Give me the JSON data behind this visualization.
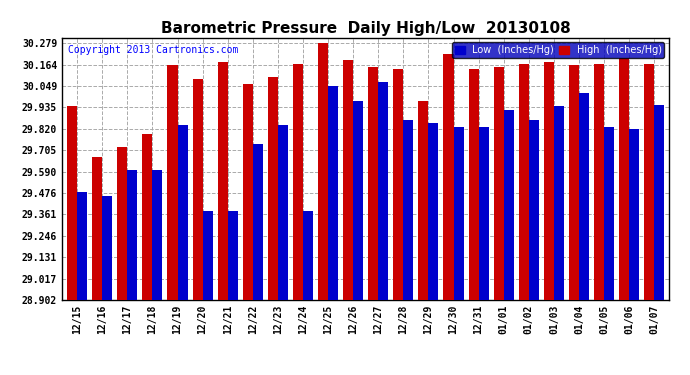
{
  "title": "Barometric Pressure  Daily High/Low  20130108",
  "copyright": "Copyright 2013 Cartronics.com",
  "legend_low": "Low  (Inches/Hg)",
  "legend_high": "High  (Inches/Hg)",
  "categories": [
    "12/15",
    "12/16",
    "12/17",
    "12/18",
    "12/19",
    "12/20",
    "12/21",
    "12/22",
    "12/23",
    "12/24",
    "12/25",
    "12/26",
    "12/27",
    "12/28",
    "12/29",
    "12/30",
    "12/31",
    "01/01",
    "01/02",
    "01/03",
    "01/04",
    "01/05",
    "01/06",
    "01/07"
  ],
  "high_values": [
    29.94,
    29.67,
    29.72,
    29.79,
    30.16,
    30.09,
    30.18,
    30.06,
    30.1,
    30.17,
    30.28,
    30.19,
    30.15,
    30.14,
    29.97,
    30.22,
    30.14,
    30.15,
    30.17,
    30.18,
    30.16,
    30.17,
    30.2,
    30.17
  ],
  "low_values": [
    29.48,
    29.46,
    29.6,
    29.6,
    29.84,
    29.38,
    29.38,
    29.74,
    29.84,
    29.38,
    30.05,
    29.97,
    30.07,
    29.87,
    29.85,
    29.83,
    29.83,
    29.92,
    29.87,
    29.94,
    30.01,
    29.83,
    29.82,
    29.95
  ],
  "low_color": "#0000cc",
  "high_color": "#cc0000",
  "bg_color": "#ffffff",
  "plot_bg_color": "#ffffff",
  "grid_color": "#aaaaaa",
  "yticks": [
    28.902,
    29.017,
    29.131,
    29.246,
    29.361,
    29.476,
    29.59,
    29.705,
    29.82,
    29.935,
    30.049,
    30.164,
    30.279
  ],
  "ylim_min": 28.902,
  "ylim_max": 30.31,
  "title_fontsize": 11,
  "copyright_fontsize": 7,
  "tick_fontsize": 7,
  "legend_fontsize": 7
}
